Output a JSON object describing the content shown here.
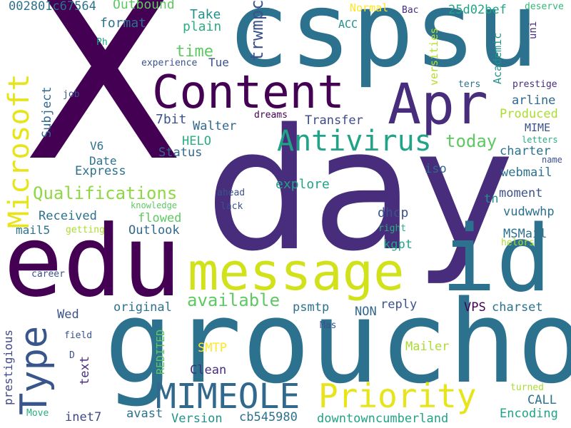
{
  "colors": {
    "background": "#ffffff",
    "palette": [
      "#440154",
      "#472d7b",
      "#3b528b",
      "#2c728e",
      "#21918c",
      "#28ae80",
      "#5ec962",
      "#addc30",
      "#fde725"
    ]
  },
  "words": [
    {
      "text": "X"
    },
    {
      "text": "day"
    },
    {
      "text": "cspsu"
    },
    {
      "text": "groucho"
    },
    {
      "text": "edu"
    },
    {
      "text": "id"
    },
    {
      "text": "Content"
    },
    {
      "text": "Apr"
    },
    {
      "text": "message"
    },
    {
      "text": "MIMEOLE"
    },
    {
      "text": "Priority"
    },
    {
      "text": "Type"
    },
    {
      "text": "Microsoft"
    },
    {
      "text": "Antivirus"
    },
    {
      "text": "Qualifications"
    },
    {
      "text": "available"
    },
    {
      "text": "today"
    },
    {
      "text": "trwmpca"
    },
    {
      "text": "time"
    },
    {
      "text": "Outbound"
    },
    {
      "text": "002801c67564"
    },
    {
      "text": "Take"
    },
    {
      "text": "plain"
    },
    {
      "text": "format"
    },
    {
      "text": "Normal"
    },
    {
      "text": "Bac"
    },
    {
      "text": "25d02bef"
    },
    {
      "text": "deserve"
    },
    {
      "text": "ACC"
    },
    {
      "text": "uni"
    },
    {
      "text": "versities"
    },
    {
      "text": "Academic"
    },
    {
      "text": "prestige"
    },
    {
      "text": "ters"
    },
    {
      "text": "arline"
    },
    {
      "text": "Produced"
    },
    {
      "text": "MIME"
    },
    {
      "text": "experience"
    },
    {
      "text": "Tue"
    },
    {
      "text": "Ph"
    },
    {
      "text": "job"
    },
    {
      "text": "Subject"
    },
    {
      "text": "dreams"
    },
    {
      "text": "Transfer"
    },
    {
      "text": "7bit"
    },
    {
      "text": "Walter"
    },
    {
      "text": "HELO"
    },
    {
      "text": "Status"
    },
    {
      "text": "V6"
    },
    {
      "text": "Date"
    },
    {
      "text": "Express"
    },
    {
      "text": "charter"
    },
    {
      "text": "letters"
    },
    {
      "text": "name"
    },
    {
      "text": "iso"
    },
    {
      "text": "webmail"
    },
    {
      "text": "explore"
    },
    {
      "text": "ahead"
    },
    {
      "text": "lack"
    },
    {
      "text": "knowledge"
    },
    {
      "text": "moment"
    },
    {
      "text": "tn"
    },
    {
      "text": "Received"
    },
    {
      "text": "flowed"
    },
    {
      "text": "dhcp"
    },
    {
      "text": "vudwwhp"
    },
    {
      "text": "mail5"
    },
    {
      "text": "getting"
    },
    {
      "text": "Outlook"
    },
    {
      "text": "right"
    },
    {
      "text": "MSMail"
    },
    {
      "text": "kgpt"
    },
    {
      "text": "helors"
    },
    {
      "text": "career"
    },
    {
      "text": "original"
    },
    {
      "text": "Wed"
    },
    {
      "text": "psmtp"
    },
    {
      "text": "NON"
    },
    {
      "text": "reply"
    },
    {
      "text": "VPS"
    },
    {
      "text": "charset"
    },
    {
      "text": "Mas"
    },
    {
      "text": "field"
    },
    {
      "text": "prestigious"
    },
    {
      "text": "D"
    },
    {
      "text": "text"
    },
    {
      "text": "SMTP"
    },
    {
      "text": "REDITED"
    },
    {
      "text": "Clean"
    },
    {
      "text": "Mailer"
    },
    {
      "text": "turned"
    },
    {
      "text": "CALL"
    },
    {
      "text": "Move"
    },
    {
      "text": "inet7"
    },
    {
      "text": "avast"
    },
    {
      "text": "Version"
    },
    {
      "text": "cb545980"
    },
    {
      "text": "downtowncumberland"
    },
    {
      "text": "Encoding"
    }
  ]
}
